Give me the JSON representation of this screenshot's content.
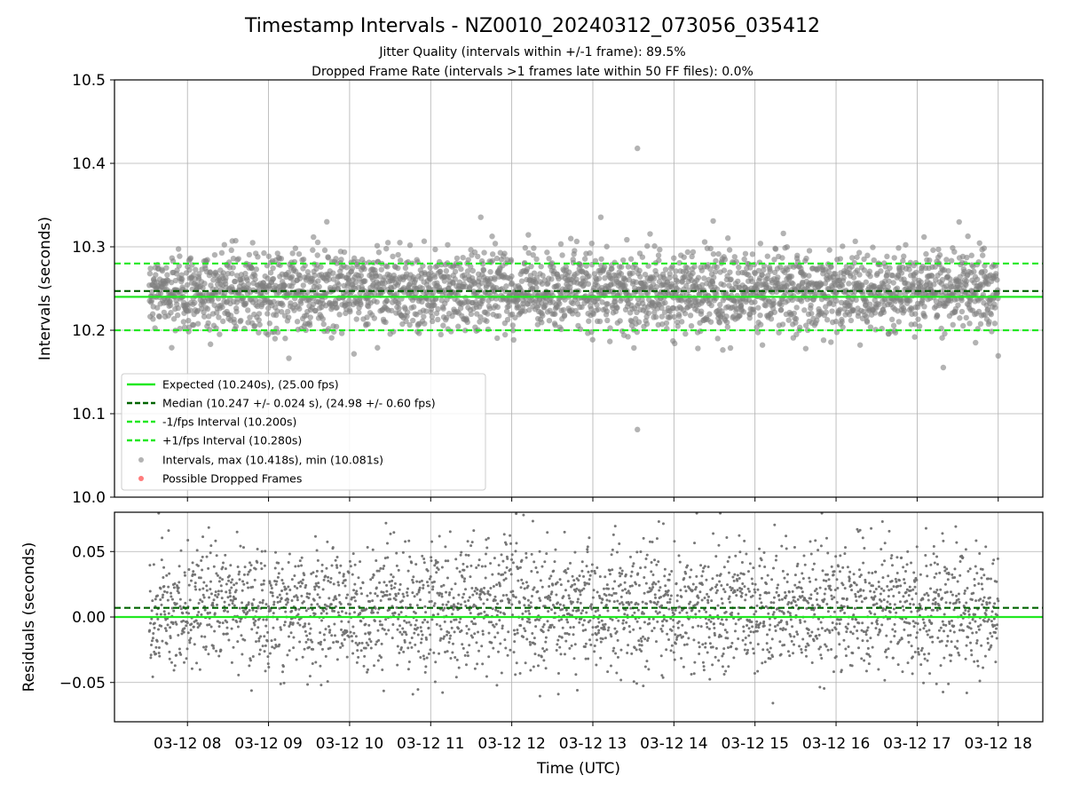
{
  "chart_data": {
    "type": "scatter",
    "title": "Timestamp Intervals - NZ0010_20240312_073056_035412",
    "subtitle_lines": [
      "Jitter Quality (intervals within +/-1 frame): 89.5%",
      "Dropped Frame Rate (intervals >1 frames late within 50 FF files): 0.0%"
    ],
    "xlabel": "Time (UTC)",
    "x_tick_labels": [
      "03-12 08",
      "03-12 09",
      "03-12 10",
      "03-12 11",
      "03-12 12",
      "03-12 13",
      "03-12 14",
      "03-12 15",
      "03-12 16",
      "03-12 17",
      "03-12 18"
    ],
    "x_range_hours": [
      7.1,
      18.55
    ],
    "data_x_range_hours": [
      7.53,
      18.0
    ],
    "grid": true,
    "panels": [
      {
        "ylabel": "Intervals (seconds)",
        "ylim": [
          10.0,
          10.5
        ],
        "y_ticks": [
          "10.0",
          "10.1",
          "10.2",
          "10.3",
          "10.4",
          "10.5"
        ],
        "y_tick_values": [
          10.0,
          10.1,
          10.2,
          10.3,
          10.4,
          10.5
        ],
        "hlines": [
          {
            "name": "Expected (10.240s), (25.00 fps)",
            "y": 10.24,
            "color": "#22e822",
            "style": "solid"
          },
          {
            "name": "Median (10.247 +/- 0.024 s), (24.98 +/- 0.60 fps)",
            "y": 10.247,
            "color": "#006400",
            "style": "dashed"
          },
          {
            "name": "-1/fps Interval (10.200s)",
            "y": 10.2,
            "color": "#22e822",
            "style": "dashed"
          },
          {
            "name": "+1/fps Interval (10.280s)",
            "y": 10.28,
            "color": "#22e822",
            "style": "dashed"
          }
        ],
        "series": [
          {
            "name": "Intervals, max (10.418s), min (10.081s)",
            "color": "#808080",
            "center": 10.247,
            "spread": 0.024,
            "count": 3000,
            "max": 10.418,
            "min": 10.081
          },
          {
            "name": "Possible Dropped Frames",
            "color": "#ff4444",
            "count": 0
          }
        ],
        "legend_position": "lower-left"
      },
      {
        "ylabel": "Residuals (seconds)",
        "ylim": [
          -0.08,
          0.08
        ],
        "y_ticks": [
          "0.05",
          "0.00",
          "−0.05"
        ],
        "y_tick_values": [
          0.05,
          0.0,
          -0.05
        ],
        "hlines": [
          {
            "y": 0.0,
            "color": "#22e822",
            "style": "solid"
          },
          {
            "y": 0.007,
            "color": "#006400",
            "style": "dashed"
          }
        ],
        "series": [
          {
            "color": "#707070",
            "center": 0.007,
            "spread": 0.024,
            "count": 3000
          }
        ]
      }
    ]
  }
}
